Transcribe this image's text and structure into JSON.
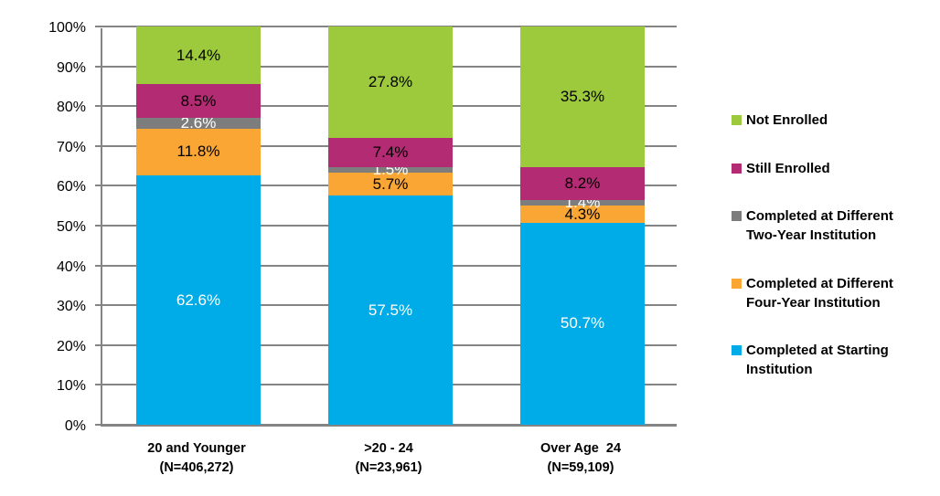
{
  "chart_data": {
    "type": "bar",
    "subtype": "stacked-100-style",
    "title": "",
    "y_axis": {
      "min": 0,
      "max": 100,
      "step": 10,
      "tick_labels": [
        "0%",
        "10%",
        "20%",
        "30%",
        "40%",
        "50%",
        "60%",
        "70%",
        "80%",
        "90%",
        "100%"
      ]
    },
    "grid": true,
    "gridline_color": "#848484",
    "categories": [
      {
        "label": "20 and Younger",
        "n_label": "(N=406,272)"
      },
      {
        "label": ">20 - 24",
        "n_label": "(N=23,961)"
      },
      {
        "label": "Over Age  24",
        "n_label": "(N=59,109)"
      }
    ],
    "series": [
      {
        "name": "Completed at Starting Institution",
        "color": "#00ACE8",
        "label_color": "#FFFFFF",
        "values": [
          62.6,
          57.5,
          50.7
        ]
      },
      {
        "name": "Completed at Different Four-Year Institution",
        "color": "#FAA634",
        "label_color": "#000000",
        "values": [
          11.8,
          5.7,
          4.3
        ]
      },
      {
        "name": "Completed at Different Two-Year Institution",
        "color": "#7D7D7D",
        "label_color": "#FFFFFF",
        "values": [
          2.6,
          1.5,
          1.4
        ]
      },
      {
        "name": "Still Enrolled",
        "color": "#B32B72",
        "label_color": "#000000",
        "values": [
          8.5,
          7.4,
          8.2
        ]
      },
      {
        "name": "Not Enrolled",
        "color": "#9CCA3C",
        "label_color": "#000000",
        "values": [
          14.4,
          27.8,
          35.3
        ]
      }
    ],
    "legend": {
      "position": "right",
      "order_top_to_bottom": [
        "Not Enrolled",
        "Still Enrolled",
        "Completed at Different Two-Year Institution",
        "Completed at Different Four-Year Institution",
        "Completed at Starting Institution"
      ]
    }
  }
}
